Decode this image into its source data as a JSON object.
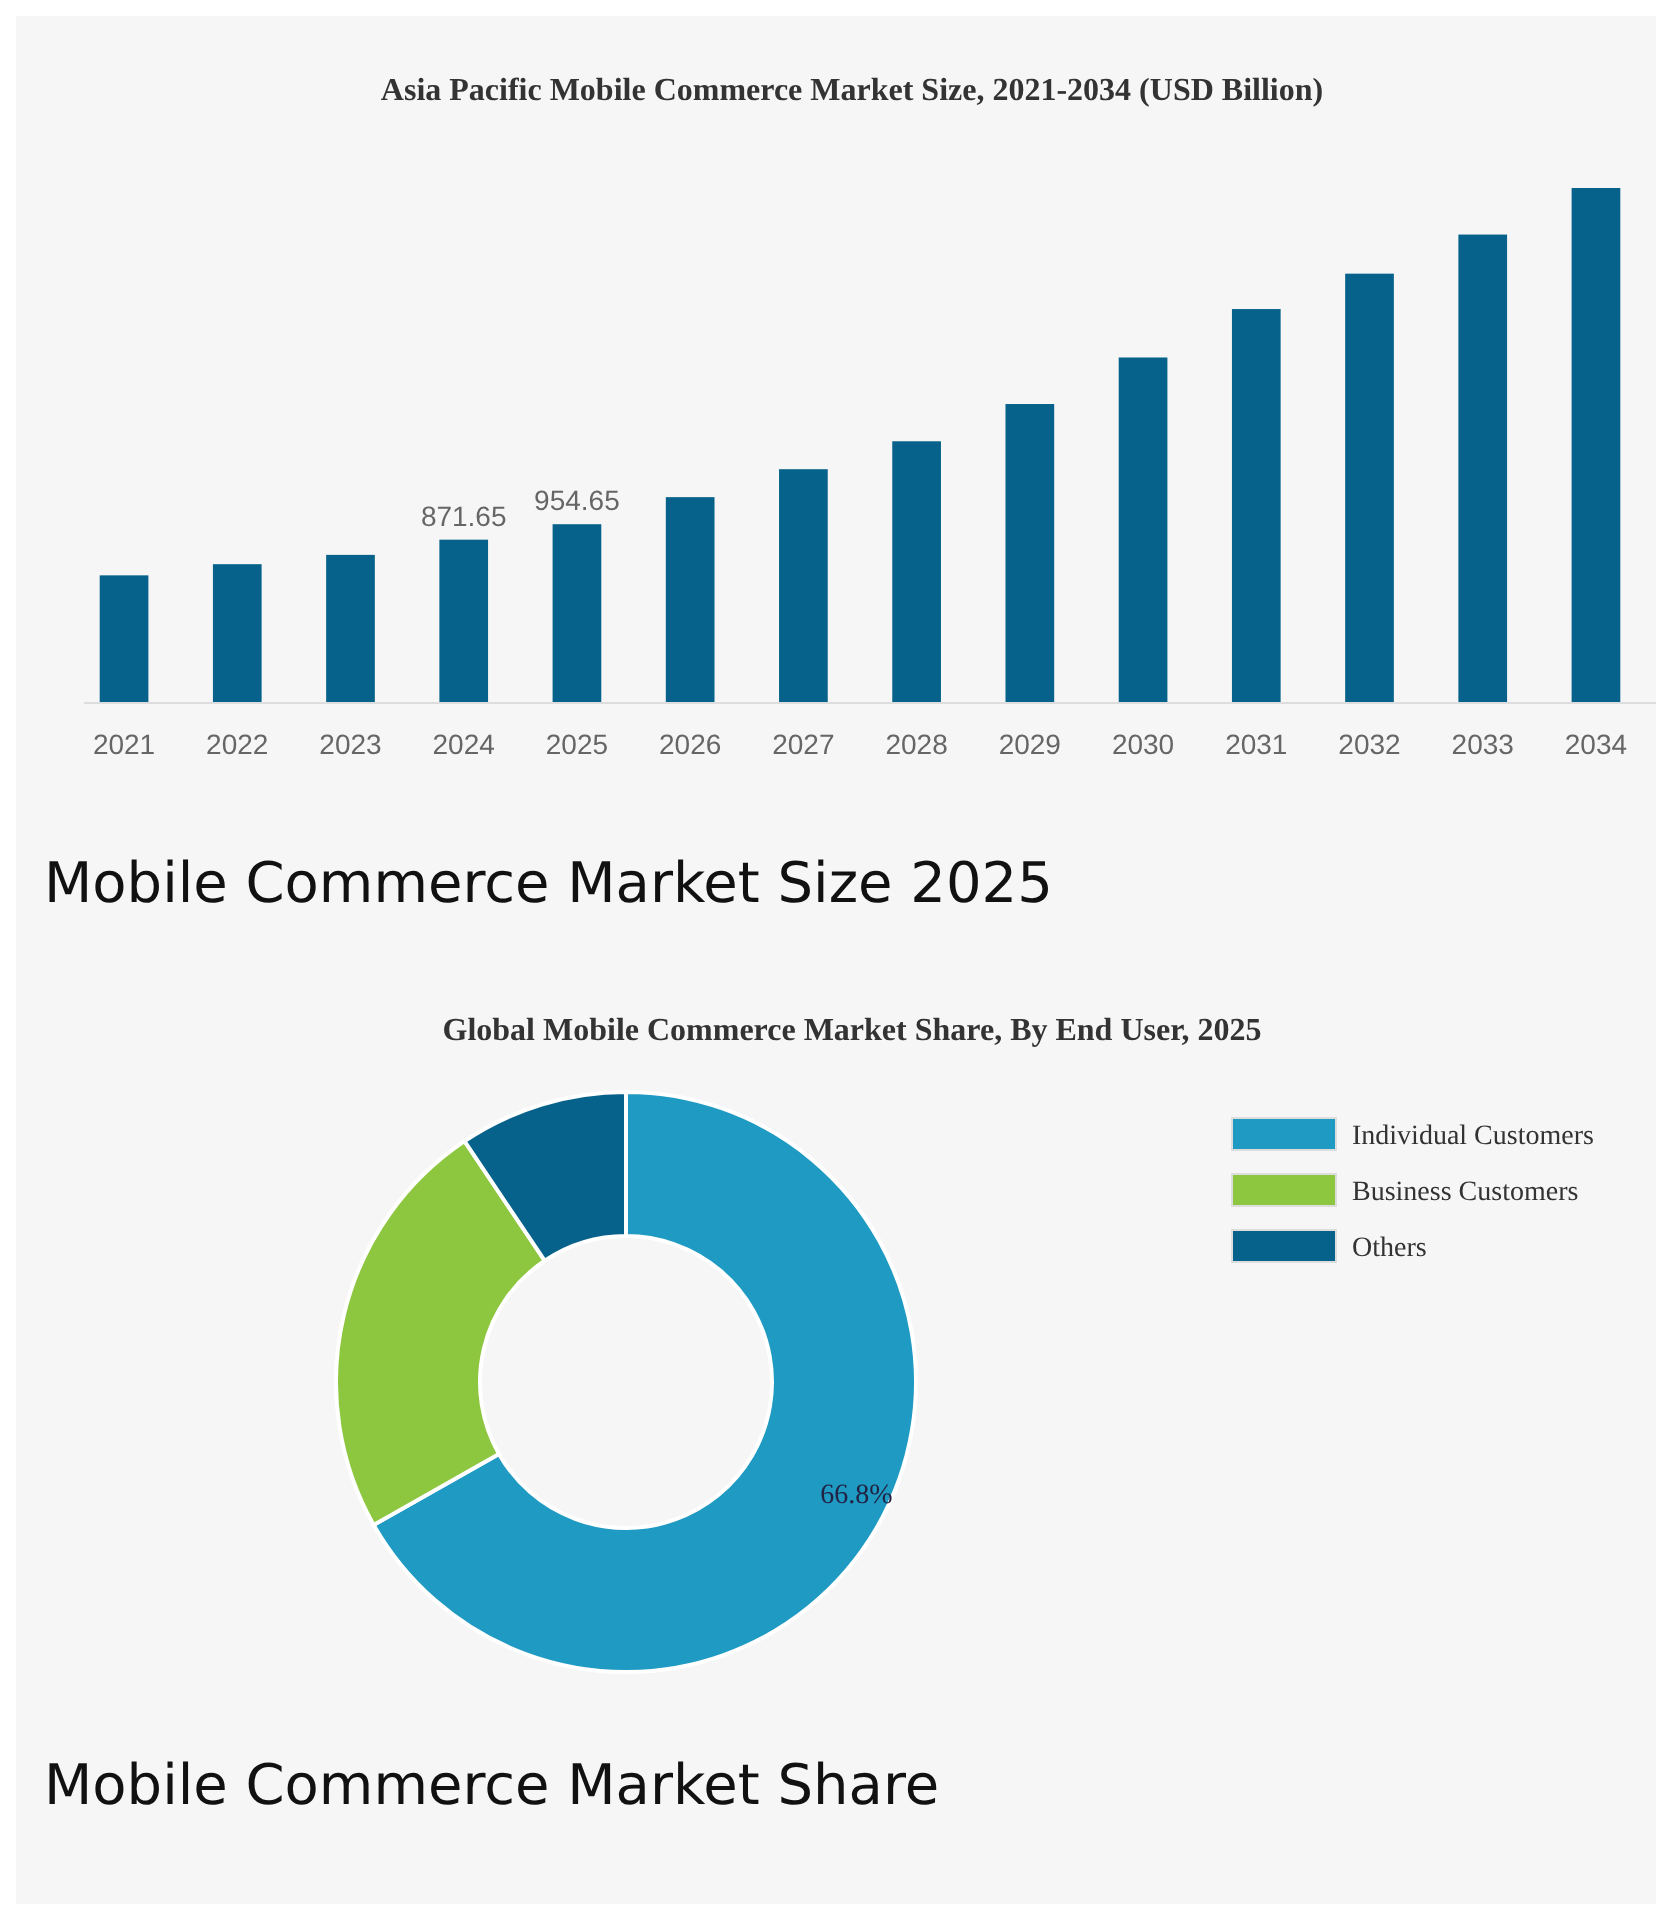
{
  "chart_data": [
    {
      "type": "bar",
      "title": "Asia Pacific Mobile Commerce Market Size, 2021-2034 (USD Billion)",
      "categories": [
        "2021",
        "2022",
        "2023",
        "2024",
        "2025",
        "2026",
        "2027",
        "2028",
        "2029",
        "2030",
        "2031",
        "2032",
        "2033",
        "2034"
      ],
      "values": [
        680,
        740,
        790,
        871.65,
        954.65,
        1100,
        1250,
        1400,
        1600,
        1850,
        2110,
        2300,
        2510,
        2760
      ],
      "value_labels": [
        null,
        null,
        null,
        "871.65",
        "954.65",
        null,
        null,
        null,
        null,
        null,
        null,
        null,
        null,
        null
      ],
      "color": "#06628a",
      "annotations": [
        "Mobile Commerce Market Size 2025"
      ]
    },
    {
      "type": "donut",
      "title": "Global Mobile Commerce Market Share, By End User, 2025",
      "categories": [
        "Individual Customers",
        "Business Customers",
        "Others"
      ],
      "values": [
        66.8,
        23.8,
        9.4
      ],
      "colors": [
        "#1e9ac3",
        "#8dc63f",
        "#06628a"
      ],
      "value_labels": [
        "66.8%",
        null,
        null
      ],
      "legend": "right",
      "annotations": [
        "Mobile Commerce Market Share"
      ]
    }
  ]
}
